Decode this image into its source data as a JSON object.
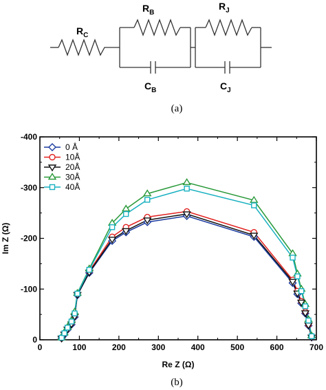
{
  "circuit": {
    "rc_main": "R",
    "rc_sub": "C",
    "rb_main": "R",
    "rb_sub": "B",
    "cb_main": "C",
    "cb_sub": "B",
    "rj_main": "R",
    "rj_sub": "J",
    "cj_main": "C",
    "cj_sub": "J"
  },
  "caption_a": "(a)",
  "caption_b": "(b)",
  "chart_data": {
    "type": "line",
    "xlabel": "Re Z (Ω)",
    "ylabel": "Im Z (Ω)",
    "xlim": [
      0,
      700
    ],
    "ylim": [
      0,
      -400
    ],
    "x_ticks": [
      "0",
      "100",
      "200",
      "300",
      "400",
      "500",
      "600",
      "700"
    ],
    "y_ticks": [
      "0",
      "-100",
      "-200",
      "-300",
      "-400"
    ],
    "legend_position": "top-left",
    "series": [
      {
        "name": "0 Å",
        "color": "#1a3a9e",
        "marker": "diamond",
        "x": [
          55,
          62,
          70,
          80,
          88,
          95,
          125,
          183,
          218,
          272,
          372,
          542,
          640,
          652,
          662,
          672,
          680,
          688
        ],
        "y": [
          -3,
          -10,
          -20,
          -30,
          -45,
          -88,
          -132,
          -195,
          -212,
          -232,
          -244,
          -203,
          -112,
          -90,
          -72,
          -52,
          -28,
          -5
        ]
      },
      {
        "name": "10Å",
        "color": "#e0201e",
        "marker": "circle",
        "x": [
          55,
          62,
          70,
          80,
          88,
          95,
          125,
          183,
          218,
          272,
          372,
          542,
          640,
          652,
          662,
          672,
          680,
          688
        ],
        "y": [
          -3,
          -12,
          -22,
          -33,
          -48,
          -90,
          -135,
          -203,
          -222,
          -242,
          -253,
          -212,
          -118,
          -96,
          -76,
          -55,
          -30,
          -6
        ]
      },
      {
        "name": "20Å",
        "color": "#111111",
        "marker": "triangle-down",
        "x": [
          55,
          62,
          70,
          80,
          88,
          95,
          125,
          183,
          218,
          272,
          372,
          542,
          640,
          652,
          662,
          672,
          680,
          688
        ],
        "y": [
          -3,
          -11,
          -21,
          -31,
          -46,
          -89,
          -133,
          -198,
          -215,
          -236,
          -248,
          -206,
          -115,
          -92,
          -74,
          -53,
          -29,
          -5
        ]
      },
      {
        "name": "30Å",
        "color": "#2a9a3a",
        "marker": "triangle-up",
        "x": [
          55,
          62,
          70,
          80,
          88,
          95,
          125,
          183,
          218,
          272,
          372,
          542,
          640,
          652,
          662,
          672,
          680,
          688
        ],
        "y": [
          -4,
          -14,
          -25,
          -38,
          -55,
          -92,
          -140,
          -230,
          -258,
          -288,
          -310,
          -275,
          -170,
          -130,
          -100,
          -70,
          -40,
          -8
        ]
      },
      {
        "name": "40Å",
        "color": "#17b0c0",
        "marker": "square",
        "x": [
          55,
          62,
          70,
          80,
          88,
          95,
          125,
          183,
          218,
          272,
          372,
          542,
          640,
          652,
          662,
          672,
          680,
          688
        ],
        "y": [
          -4,
          -13,
          -24,
          -36,
          -52,
          -91,
          -138,
          -222,
          -248,
          -276,
          -298,
          -265,
          -162,
          -125,
          -96,
          -66,
          -38,
          -7
        ]
      }
    ]
  }
}
